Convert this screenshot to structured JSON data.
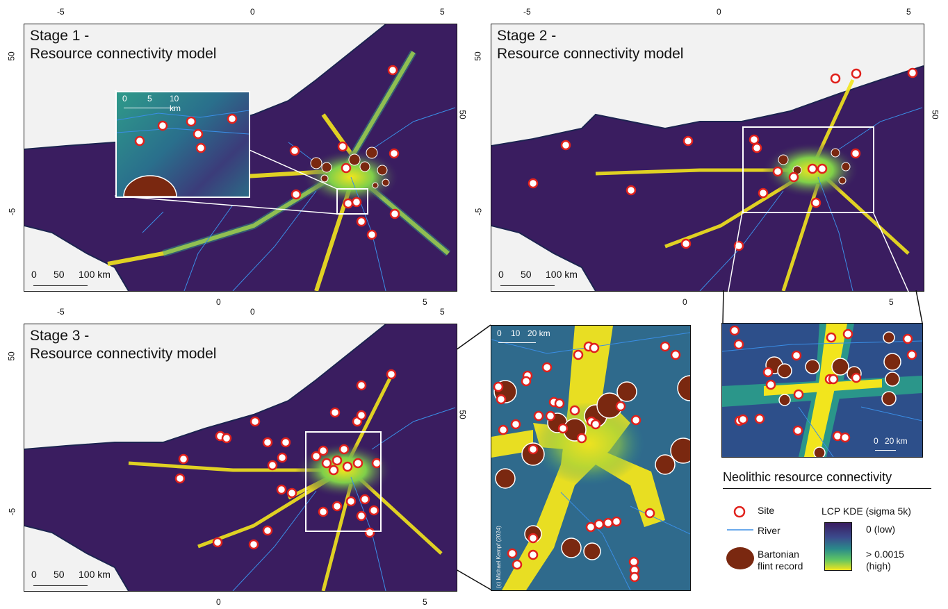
{
  "panels": {
    "stage1": {
      "title_line1": "Stage 1 -",
      "title_line2": "Resource connectivity model",
      "scale": [
        "0",
        "50",
        "100 km"
      ]
    },
    "stage2": {
      "title_line1": "Stage 2 -",
      "title_line2": "Resource connectivity model",
      "scale": [
        "0",
        "50",
        "100 km"
      ]
    },
    "stage3": {
      "title_line1": "Stage 3 -",
      "title_line2": "Resource connectivity model",
      "scale": [
        "0",
        "50",
        "100 km"
      ]
    },
    "inset1": {
      "scale": [
        "0",
        "5",
        "10 km"
      ]
    },
    "zoom3": {
      "scale": [
        "0",
        "10",
        "20 km"
      ],
      "credit": "(c) Michael Kempf (2024)"
    },
    "zoom2": {
      "scale": [
        "0",
        "20 km"
      ]
    }
  },
  "axes": {
    "stage1_top": [
      "-5",
      "0",
      "5"
    ],
    "stage1_bottom": [
      "0",
      "5"
    ],
    "stage1_left": [
      "50",
      "-5"
    ],
    "stage1_right": [
      "50"
    ],
    "stage2_top": [
      "-5",
      "0",
      "5"
    ],
    "stage2_bottom": [
      "0",
      "5"
    ],
    "stage2_left": [
      "50",
      "-5"
    ],
    "stage2_right": [
      "50"
    ],
    "stage3_top": [
      "-5",
      "0",
      "5"
    ],
    "stage3_bottom": [
      "0",
      "5"
    ],
    "stage3_left": [
      "50",
      "-5"
    ],
    "stage3_right": [
      "50"
    ]
  },
  "legend": {
    "title": "Neolithic resource connectivity",
    "site": "Site",
    "river": "River",
    "flint_line1": "Bartonian",
    "flint_line2": "flint record",
    "kde_title": "LCP KDE (sigma 5k)",
    "kde_low": "0 (low)",
    "kde_high_line1": "> 0.0015",
    "kde_high_line2": "(high)"
  },
  "colors": {
    "land_low": "#3a1d60",
    "land_mid": "#2a7a8c",
    "corridor": "#f2e51d",
    "sea": "#f2f2f2",
    "coast": "#1c2450",
    "river": "#3a8ee6",
    "site_ring": "#e0211c",
    "flint": "#7a2810"
  }
}
